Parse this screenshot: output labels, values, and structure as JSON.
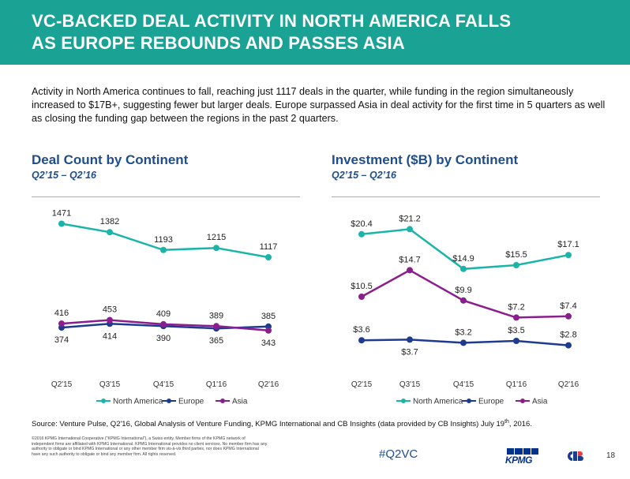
{
  "colors": {
    "banner": "#1aa295",
    "heading": "#1f4e8c",
    "north_america": "#1ab5a8",
    "europe": "#1f3b8f",
    "asia": "#8b1e8f",
    "hashtag": "#1f4e8c"
  },
  "header": {
    "title_line1": "VC-BACKED DEAL ACTIVITY IN NORTH AMERICA FALLS",
    "title_line2": "AS EUROPE REBOUNDS AND PASSES ASIA"
  },
  "intro": "Activity in North America continues to fall, reaching just 1117 deals in the quarter, while funding in the region simultaneously increased to $17B+, suggesting fewer but larger deals. Europe surpassed Asia in deal activity for the first time in 5 quarters as well as closing the funding gap between the regions in the past 2 quarters.",
  "chart_data": [
    {
      "type": "line",
      "title": "Deal Count by Continent",
      "subtitle": "Q2’15 – Q2’16",
      "categories": [
        "Q2'15",
        "Q3'15",
        "Q4'15",
        "Q1'16",
        "Q2'16"
      ],
      "series": [
        {
          "name": "North America",
          "values": [
            1471,
            1382,
            1193,
            1215,
            1117
          ],
          "labels": [
            "1471",
            "1382",
            "1193",
            "1215",
            "1117"
          ],
          "label_pos": [
            "above",
            "above",
            "above",
            "above",
            "above"
          ]
        },
        {
          "name": "Europe",
          "values": [
            374,
            414,
            390,
            365,
            385
          ],
          "labels": [
            "374",
            "414",
            "390",
            "365",
            "385"
          ],
          "label_pos": [
            "below",
            "below",
            "below",
            "below",
            "above"
          ]
        },
        {
          "name": "Asia",
          "values": [
            416,
            453,
            409,
            389,
            343
          ],
          "labels": [
            "416",
            "453",
            "409",
            "389",
            "343"
          ],
          "label_pos": [
            "above",
            "above",
            "above",
            "above",
            "below"
          ]
        }
      ],
      "ylim": [
        0,
        1600
      ],
      "legend": "bottom",
      "grid": false
    },
    {
      "type": "line",
      "title": "Investment ($B) by Continent",
      "subtitle": "Q2’15 – Q2’16",
      "categories": [
        "Q2'15",
        "Q3'15",
        "Q4'15",
        "Q1'16",
        "Q2'16"
      ],
      "series": [
        {
          "name": "North America",
          "values": [
            20.4,
            21.2,
            14.9,
            15.5,
            17.1
          ],
          "labels": [
            "$20.4",
            "$21.2",
            "$14.9",
            "$15.5",
            "$17.1"
          ],
          "label_pos": [
            "above",
            "above",
            "above",
            "above",
            "above"
          ]
        },
        {
          "name": "Europe",
          "values": [
            3.6,
            3.7,
            3.2,
            3.5,
            2.8
          ],
          "labels": [
            "$3.6",
            "$3.7",
            "$3.2",
            "$3.5",
            "$2.8"
          ],
          "label_pos": [
            "above",
            "below",
            "above",
            "above",
            "above"
          ]
        },
        {
          "name": "Asia",
          "values": [
            10.5,
            14.7,
            9.9,
            7.2,
            7.4
          ],
          "labels": [
            "$10.5",
            "$14.7",
            "$9.9",
            "$7.2",
            "$7.4"
          ],
          "label_pos": [
            "above",
            "above",
            "above",
            "above",
            "above"
          ]
        }
      ],
      "ylim": [
        0,
        24
      ],
      "legend": "bottom",
      "grid": false
    }
  ],
  "footer": {
    "source": "Source: Venture Pulse, Q2'16, Global Analysis of Venture Funding, KPMG International and CB Insights (data provided by CB Insights) July 19",
    "source_sup": "th",
    "source_end": ", 2016.",
    "copyright": "©2016 KPMG International Cooperative (\"KPMG International\"), a Swiss entity. Member firms of the KPMG network of independent firms are affiliated with KPMG International. KPMG International provides no client services. No member firm has any authority to obligate or bind KPMG International or any other member firm vis-à-vis third parties, nor does KPMG International have any such authority to obligate or bind any member firm. All rights reserved.",
    "hashtag": "#Q2VC",
    "kpmg_logo": "KPMG",
    "page_number": "18"
  }
}
